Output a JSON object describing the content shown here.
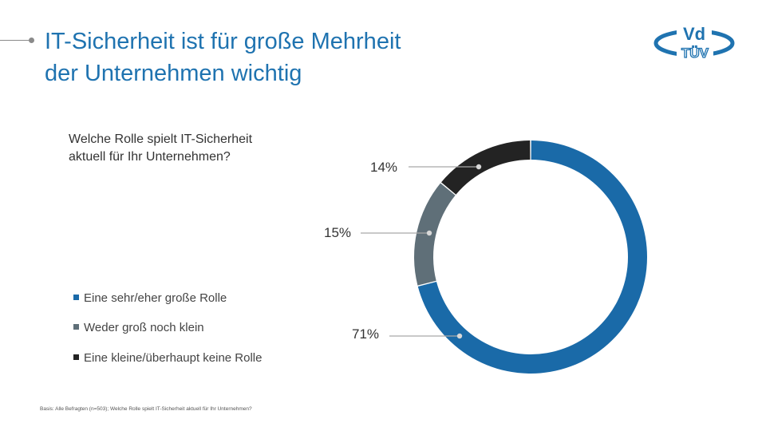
{
  "title": {
    "line1": "IT-Sicherheit ist für große Mehrheit",
    "line2": "der Unternehmen wichtig"
  },
  "logo": {
    "text_top": "Vd",
    "text_bottom": "TÜV"
  },
  "question": {
    "line1": "Welche Rolle spielt IT-Sicherheit",
    "line2": "aktuell für Ihr Unternehmen?"
  },
  "colors": {
    "accent": "#1f73b0",
    "blue": "#1a6aa8",
    "gray": "#5f6f78",
    "dark": "#232323",
    "leader": "#a9a9a9"
  },
  "chart_data": {
    "type": "pie",
    "variant": "donut",
    "title": "Welche Rolle spielt IT-Sicherheit aktuell für Ihr Unternehmen?",
    "categories": [
      "Eine sehr/eher große Rolle",
      "Weder groß noch klein",
      "Eine kleine/überhaupt keine Rolle"
    ],
    "values": [
      71,
      15,
      14
    ],
    "labels": [
      "71%",
      "15%",
      "14%"
    ],
    "colors": [
      "#1a6aa8",
      "#5f6f78",
      "#232323"
    ],
    "legend_position": "left"
  },
  "footnote": "Basis: Alle Befragten (n=503); Welche Rolle spielt IT-Sicherheit aktuell für Ihr Unternehmen?"
}
